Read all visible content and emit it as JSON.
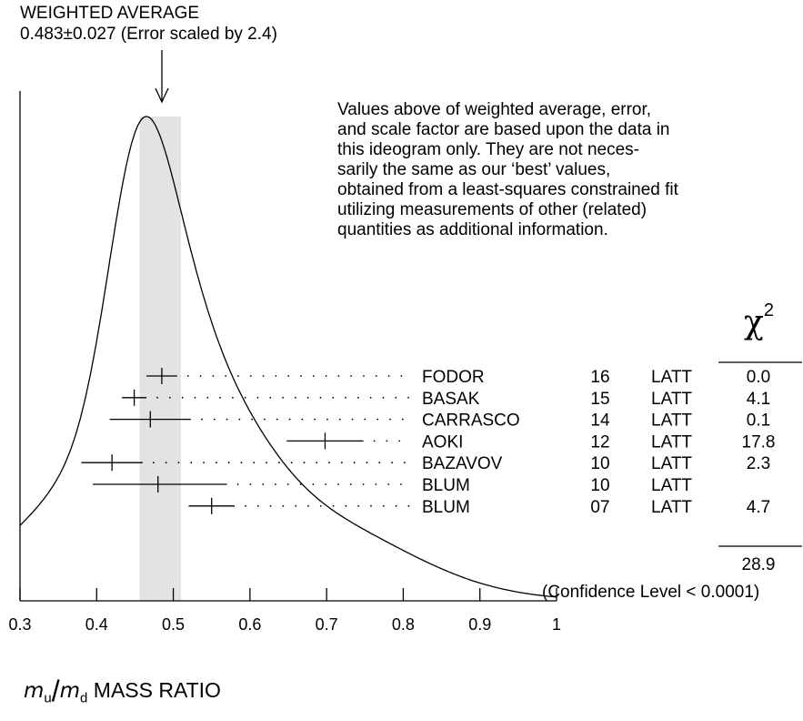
{
  "header": {
    "weighted_average_label": "WEIGHTED AVERAGE",
    "weighted_average_value": "0.483±0.027 (Error scaled by 2.4)"
  },
  "note": "Values above of weighted average, error,\nand scale factor are based upon the data in\nthis ideogram only.  They are not neces-\nsarily the same as our ‘best’ values,\nobtained from a least-squares constrained fit\nutilizing measurements of other (related)\nquantities as additional information.",
  "chi2_header": "χ",
  "chi2_exponent": "2",
  "chi2_total": "28.9",
  "confidence_level": "(Confidence Level < 0.0001)",
  "xlabel": {
    "numerator": "m",
    "numerator_sub": "u",
    "denominator": "m",
    "denominator_sub": "d",
    "suffix": "MASS RATIO"
  },
  "chart_data": {
    "type": "scatter",
    "xlim": [
      0.3,
      1.0
    ],
    "xticks": [
      "0.3",
      "0.4",
      "0.5",
      "0.6",
      "0.7",
      "0.8",
      "0.9",
      "1"
    ],
    "weighted_average": {
      "value": 0.483,
      "error": 0.027
    },
    "measurements": [
      {
        "author": "FODOR",
        "year": "16",
        "tech": "LATT",
        "value": 0.485,
        "low": 0.465,
        "high": 0.505,
        "chi2": "0.0"
      },
      {
        "author": "BASAK",
        "year": "15",
        "tech": "LATT",
        "value": 0.449,
        "low": 0.433,
        "high": 0.465,
        "chi2": "4.1"
      },
      {
        "author": "CARRASCO",
        "year": "14",
        "tech": "LATT",
        "value": 0.47,
        "low": 0.417,
        "high": 0.523,
        "chi2": "0.1"
      },
      {
        "author": "AOKI",
        "year": "12",
        "tech": "LATT",
        "value": 0.698,
        "low": 0.648,
        "high": 0.748,
        "chi2": "17.8"
      },
      {
        "author": "BAZAVOV",
        "year": "10",
        "tech": "LATT",
        "value": 0.42,
        "low": 0.38,
        "high": 0.46,
        "chi2": "2.3"
      },
      {
        "author": "BLUM",
        "year": "10",
        "tech": "LATT",
        "value": 0.48,
        "low": 0.395,
        "high": 0.57,
        "chi2": ""
      },
      {
        "author": "BLUM",
        "year": "07",
        "tech": "LATT",
        "value": 0.55,
        "low": 0.52,
        "high": 0.58,
        "chi2": "4.7"
      }
    ],
    "colors": {
      "band": "#e3e3e3",
      "line": "#000000"
    }
  }
}
